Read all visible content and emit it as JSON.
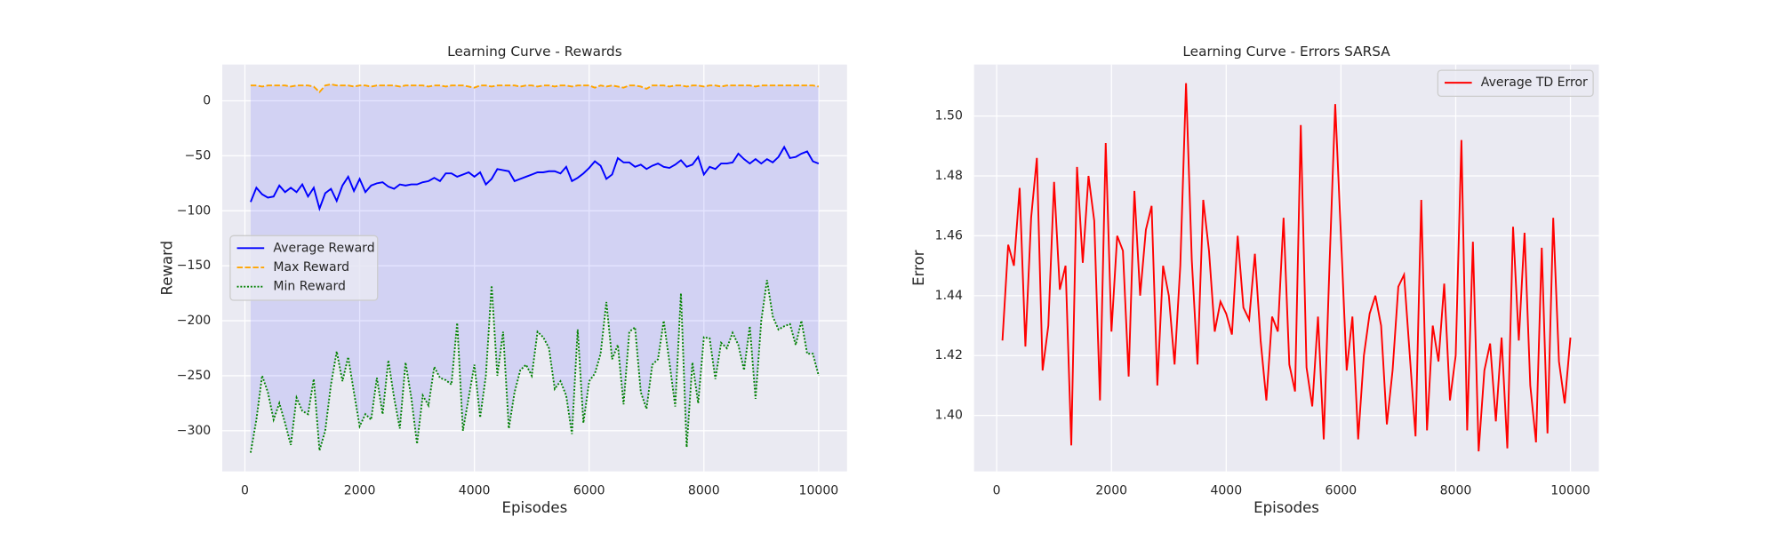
{
  "chart_data": [
    {
      "type": "line",
      "title": "Learning Curve - Rewards",
      "xlabel": "Episodes",
      "ylabel": "Reward",
      "x": [
        100,
        200,
        300,
        400,
        500,
        600,
        700,
        800,
        900,
        1000,
        1100,
        1200,
        1300,
        1400,
        1500,
        1600,
        1700,
        1800,
        1900,
        2000,
        2100,
        2200,
        2300,
        2400,
        2500,
        2600,
        2700,
        2800,
        2900,
        3000,
        3100,
        3200,
        3300,
        3400,
        3500,
        3600,
        3700,
        3800,
        3900,
        4000,
        4100,
        4200,
        4300,
        4400,
        4500,
        4600,
        4700,
        4800,
        4900,
        5000,
        5100,
        5200,
        5300,
        5400,
        5500,
        5600,
        5700,
        5800,
        5900,
        6000,
        6100,
        6200,
        6300,
        6400,
        6500,
        6600,
        6700,
        6800,
        6900,
        7000,
        7100,
        7200,
        7300,
        7400,
        7500,
        7600,
        7700,
        7800,
        7900,
        8000,
        8100,
        8200,
        8300,
        8400,
        8500,
        8600,
        8700,
        8800,
        8900,
        9000,
        9100,
        9200,
        9300,
        9400,
        9500,
        9600,
        9700,
        9800,
        9900,
        10000
      ],
      "series": [
        {
          "name": "Average Reward",
          "color": "#0000ff",
          "linestyle": "solid",
          "values": [
            -92,
            -79,
            -85,
            -88,
            -87,
            -77,
            -83,
            -79,
            -83,
            -76,
            -87,
            -79,
            -98,
            -84,
            -80,
            -91,
            -77,
            -69,
            -82,
            -71,
            -83,
            -77,
            -75,
            -74,
            -78,
            -80,
            -76,
            -77,
            -76,
            -76,
            -74,
            -73,
            -70,
            -73,
            -66,
            -66,
            -69,
            -67,
            -65,
            -69,
            -65,
            -76,
            -71,
            -62,
            -63,
            -64,
            -73,
            -71,
            -69,
            -67,
            -65,
            -65,
            -64,
            -64,
            -66,
            -60,
            -73,
            -70,
            -66,
            -61,
            -55,
            -59,
            -71,
            -67,
            -52,
            -56,
            -56,
            -60,
            -58,
            -62,
            -59,
            -57,
            -60,
            -61,
            -58,
            -54,
            -60,
            -58,
            -51,
            -67,
            -60,
            -62,
            -57,
            -57,
            -56,
            -48,
            -53,
            -57,
            -53,
            -57,
            -53,
            -56,
            -51,
            -42,
            -52,
            -51,
            -48,
            -46,
            -55,
            -57
          ]
        },
        {
          "name": "Max Reward",
          "color": "#ffa500",
          "linestyle": "dashed",
          "values": [
            14,
            14,
            13,
            14,
            14,
            14,
            14,
            13,
            14,
            14,
            14,
            13,
            8,
            14,
            15,
            14,
            14,
            14,
            13,
            14,
            14,
            13,
            14,
            14,
            14,
            14,
            13,
            14,
            14,
            14,
            14,
            13,
            14,
            14,
            13,
            14,
            14,
            14,
            13,
            12,
            14,
            14,
            13,
            14,
            14,
            14,
            14,
            13,
            14,
            14,
            13,
            14,
            14,
            13,
            14,
            14,
            13,
            14,
            14,
            14,
            12,
            14,
            13,
            14,
            13,
            12,
            14,
            14,
            13,
            11,
            14,
            14,
            14,
            13,
            14,
            14,
            13,
            14,
            14,
            13,
            14,
            14,
            13,
            14,
            14,
            14,
            14,
            14,
            13,
            14,
            14,
            14,
            14,
            14,
            14,
            14,
            14,
            14,
            14,
            13
          ]
        },
        {
          "name": "Min Reward",
          "color": "#008000",
          "linestyle": "dotted",
          "values": [
            -320,
            -290,
            -250,
            -265,
            -290,
            -275,
            -293,
            -313,
            -270,
            -282,
            -285,
            -253,
            -318,
            -300,
            -258,
            -228,
            -255,
            -233,
            -265,
            -296,
            -285,
            -290,
            -252,
            -285,
            -236,
            -270,
            -298,
            -238,
            -270,
            -312,
            -268,
            -277,
            -242,
            -252,
            -254,
            -258,
            -202,
            -300,
            -270,
            -240,
            -288,
            -250,
            -168,
            -250,
            -210,
            -298,
            -265,
            -245,
            -240,
            -250,
            -210,
            -215,
            -225,
            -262,
            -255,
            -268,
            -303,
            -208,
            -293,
            -255,
            -248,
            -230,
            -183,
            -235,
            -222,
            -276,
            -210,
            -206,
            -265,
            -280,
            -240,
            -235,
            -200,
            -238,
            -278,
            -175,
            -315,
            -238,
            -275,
            -215,
            -216,
            -253,
            -220,
            -225,
            -211,
            -222,
            -245,
            -205,
            -271,
            -200,
            -163,
            -196,
            -208,
            -205,
            -203,
            -222,
            -200,
            -230,
            -230,
            -250
          ]
        }
      ],
      "fill_between": [
        2,
        1
      ],
      "fill_color": "#0000ff",
      "fill_opacity": 0.1,
      "xlim": [
        -395,
        10495
      ],
      "ylim": [
        -337,
        33
      ],
      "xticks": [
        0,
        2000,
        4000,
        6000,
        8000,
        10000
      ],
      "yticks": [
        0,
        {
          "value": -50,
          "label": "−50"
        },
        {
          "value": -100,
          "label": "−100"
        },
        {
          "value": -150,
          "label": "−150"
        },
        {
          "value": -200,
          "label": "−200"
        },
        {
          "value": -250,
          "label": "−250"
        },
        {
          "value": -300,
          "label": "−300"
        }
      ],
      "grid": true,
      "legend": "center left"
    },
    {
      "type": "line",
      "title": "Learning Curve - Errors SARSA",
      "xlabel": "Episodes",
      "ylabel": "Error",
      "x": [
        100,
        200,
        300,
        400,
        500,
        600,
        700,
        800,
        900,
        1000,
        1100,
        1200,
        1300,
        1400,
        1500,
        1600,
        1700,
        1800,
        1900,
        2000,
        2100,
        2200,
        2300,
        2400,
        2500,
        2600,
        2700,
        2800,
        2900,
        3000,
        3100,
        3200,
        3300,
        3400,
        3500,
        3600,
        3700,
        3800,
        3900,
        4000,
        4100,
        4200,
        4300,
        4400,
        4500,
        4600,
        4700,
        4800,
        4900,
        5000,
        5100,
        5200,
        5300,
        5400,
        5500,
        5600,
        5700,
        5800,
        5900,
        6000,
        6100,
        6200,
        6300,
        6400,
        6500,
        6600,
        6700,
        6800,
        6900,
        7000,
        7100,
        7200,
        7300,
        7400,
        7500,
        7600,
        7700,
        7800,
        7900,
        8000,
        8100,
        8200,
        8300,
        8400,
        8500,
        8600,
        8700,
        8800,
        8900,
        9000,
        9100,
        9200,
        9300,
        9400,
        9500,
        9600,
        9700,
        9800,
        9900,
        10000
      ],
      "series": [
        {
          "name": "Average TD Error",
          "color": "#ff0000",
          "linestyle": "solid",
          "values": [
            1.425,
            1.457,
            1.45,
            1.476,
            1.423,
            1.466,
            1.486,
            1.415,
            1.43,
            1.478,
            1.442,
            1.45,
            1.39,
            1.483,
            1.451,
            1.48,
            1.465,
            1.405,
            1.491,
            1.428,
            1.46,
            1.455,
            1.413,
            1.475,
            1.44,
            1.462,
            1.47,
            1.41,
            1.45,
            1.44,
            1.417,
            1.45,
            1.511,
            1.452,
            1.417,
            1.472,
            1.455,
            1.428,
            1.438,
            1.434,
            1.427,
            1.46,
            1.436,
            1.432,
            1.454,
            1.425,
            1.405,
            1.433,
            1.428,
            1.466,
            1.417,
            1.408,
            1.497,
            1.416,
            1.403,
            1.433,
            1.392,
            1.45,
            1.504,
            1.46,
            1.415,
            1.433,
            1.392,
            1.42,
            1.434,
            1.44,
            1.43,
            1.397,
            1.415,
            1.443,
            1.447,
            1.42,
            1.393,
            1.472,
            1.395,
            1.43,
            1.418,
            1.444,
            1.405,
            1.42,
            1.492,
            1.395,
            1.458,
            1.388,
            1.415,
            1.424,
            1.398,
            1.426,
            1.389,
            1.463,
            1.425,
            1.461,
            1.41,
            1.391,
            1.456,
            1.394,
            1.466,
            1.418,
            1.404,
            1.426
          ]
        }
      ],
      "xlim": [
        -395,
        10495
      ],
      "ylim": [
        1.3813,
        1.5172
      ],
      "xticks": [
        0,
        2000,
        4000,
        6000,
        8000,
        10000
      ],
      "yticks": [
        {
          "value": 1.4,
          "label": "1.40"
        },
        1.42,
        1.44,
        1.46,
        1.48,
        {
          "value": 1.5,
          "label": "1.50"
        }
      ],
      "grid": true,
      "legend": "upper right"
    }
  ]
}
